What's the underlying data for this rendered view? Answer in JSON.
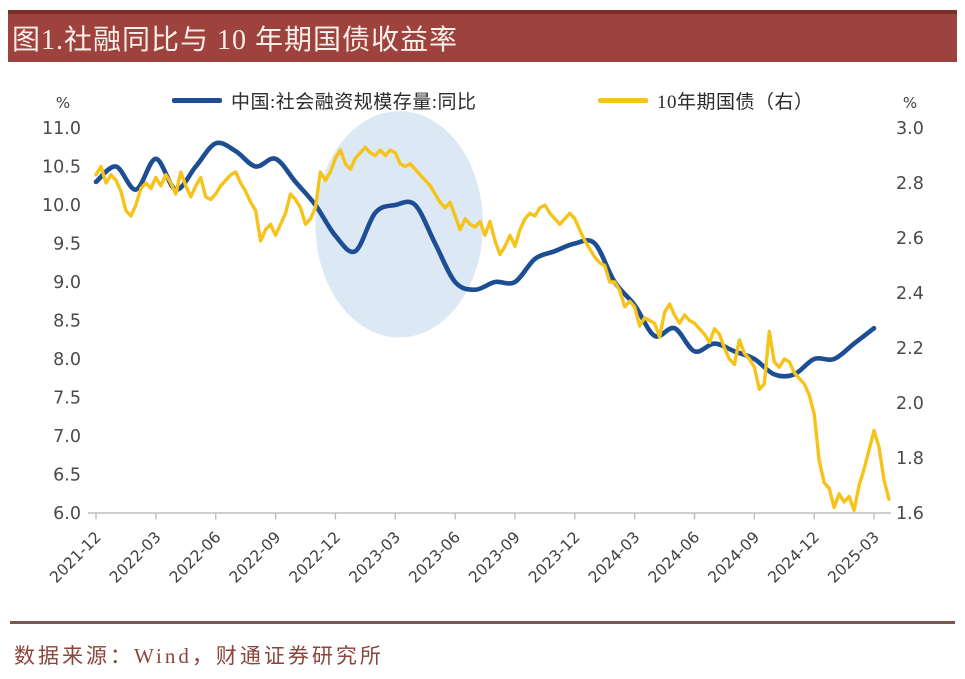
{
  "header": {
    "title": "图1.社融同比与 10 年期国债收益率",
    "bar_color": "#9e423d",
    "bar_top_border_color": "#7b2d28"
  },
  "legend": [
    {
      "label": "中国:社会融资规模存量:同比",
      "color": "#1d4e94"
    },
    {
      "label": "10年期国债（右）",
      "color": "#f5c31a"
    }
  ],
  "footer": {
    "source": "数据来源：Wind，财通证券研究所"
  },
  "chart_data": {
    "type": "line",
    "title": "图1.社融同比与 10 年期国债收益率",
    "grid": "off",
    "left_axis": {
      "unit": "%",
      "min": 6.0,
      "max": 11.0,
      "tick_labels": [
        "11.0",
        "10.5",
        "10.0",
        "9.5",
        "9.0",
        "8.5",
        "8.0",
        "7.5",
        "7.0",
        "6.5",
        "6.0"
      ]
    },
    "right_axis": {
      "unit": "%",
      "min": 1.6,
      "max": 3.0,
      "tick_labels": [
        "3.0",
        "2.8",
        "2.6",
        "2.4",
        "2.2",
        "2.0",
        "1.8",
        "1.6"
      ]
    },
    "x_axis": {
      "start_month": "2021-12",
      "end_month": "2025-03",
      "tick_interval_months": 3,
      "tick_labels": [
        "2021-12",
        "2022-03",
        "2022-06",
        "2022-09",
        "2022-12",
        "2023-03",
        "2023-06",
        "2023-09",
        "2023-12",
        "2024-03",
        "2024-06",
        "2024-09",
        "2024-12",
        "2025-03"
      ]
    },
    "series": [
      {
        "name": "中国:社会融资规模存量:同比",
        "axis": "left",
        "color": "#1d4e94",
        "interval_months": 1,
        "style": "smooth",
        "values": [
          10.3,
          10.5,
          10.2,
          10.6,
          10.2,
          10.5,
          10.8,
          10.7,
          10.5,
          10.6,
          10.3,
          10.0,
          9.6,
          9.4,
          9.9,
          10.0,
          10.0,
          9.5,
          9.0,
          8.9,
          9.0,
          9.0,
          9.3,
          9.4,
          9.5,
          9.5,
          9.0,
          8.7,
          8.3,
          8.4,
          8.1,
          8.2,
          8.1,
          8.0,
          7.8,
          7.8,
          8.0,
          8.0,
          8.2,
          8.4
        ]
      },
      {
        "name": "10年期国债（右）",
        "axis": "right",
        "color": "#f5c31a",
        "interval_months": 0.25,
        "style": "jagged",
        "values": [
          2.83,
          2.86,
          2.8,
          2.83,
          2.81,
          2.77,
          2.7,
          2.68,
          2.72,
          2.78,
          2.8,
          2.78,
          2.82,
          2.79,
          2.83,
          2.8,
          2.76,
          2.84,
          2.79,
          2.75,
          2.79,
          2.82,
          2.75,
          2.74,
          2.76,
          2.79,
          2.81,
          2.83,
          2.84,
          2.8,
          2.77,
          2.73,
          2.7,
          2.59,
          2.63,
          2.65,
          2.61,
          2.65,
          2.69,
          2.76,
          2.74,
          2.71,
          2.65,
          2.67,
          2.71,
          2.84,
          2.81,
          2.84,
          2.89,
          2.92,
          2.87,
          2.85,
          2.89,
          2.91,
          2.93,
          2.91,
          2.9,
          2.92,
          2.9,
          2.92,
          2.91,
          2.87,
          2.86,
          2.87,
          2.85,
          2.83,
          2.81,
          2.79,
          2.76,
          2.73,
          2.71,
          2.73,
          2.68,
          2.63,
          2.67,
          2.65,
          2.64,
          2.66,
          2.61,
          2.66,
          2.59,
          2.54,
          2.57,
          2.61,
          2.57,
          2.63,
          2.67,
          2.69,
          2.68,
          2.71,
          2.72,
          2.69,
          2.67,
          2.65,
          2.67,
          2.69,
          2.67,
          2.63,
          2.59,
          2.56,
          2.53,
          2.51,
          2.5,
          2.44,
          2.44,
          2.41,
          2.35,
          2.37,
          2.35,
          2.28,
          2.31,
          2.3,
          2.29,
          2.24,
          2.33,
          2.36,
          2.32,
          2.29,
          2.32,
          2.3,
          2.29,
          2.27,
          2.25,
          2.22,
          2.27,
          2.25,
          2.2,
          2.16,
          2.14,
          2.23,
          2.18,
          2.16,
          2.13,
          2.05,
          2.07,
          2.26,
          2.15,
          2.13,
          2.16,
          2.15,
          2.11,
          2.09,
          2.07,
          2.03,
          1.96,
          1.79,
          1.71,
          1.69,
          1.62,
          1.67,
          1.64,
          1.66,
          1.61,
          1.7,
          1.76,
          1.83,
          1.9,
          1.84,
          1.72,
          1.65
        ]
      }
    ],
    "annotations": [
      {
        "type": "ellipse",
        "center_month_index": 15.2,
        "center_value_left": 9.75,
        "rx_months": 4.2,
        "ry_value_left": 1.47,
        "color": "#dce9f5"
      }
    ]
  }
}
